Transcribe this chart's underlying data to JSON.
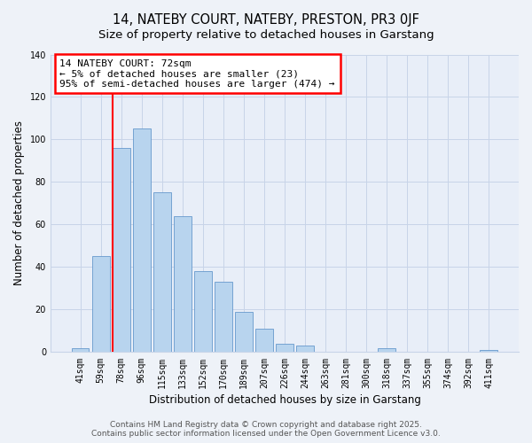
{
  "title": "14, NATEBY COURT, NATEBY, PRESTON, PR3 0JF",
  "subtitle": "Size of property relative to detached houses in Garstang",
  "xlabel": "Distribution of detached houses by size in Garstang",
  "ylabel": "Number of detached properties",
  "bar_labels": [
    "41sqm",
    "59sqm",
    "78sqm",
    "96sqm",
    "115sqm",
    "133sqm",
    "152sqm",
    "170sqm",
    "189sqm",
    "207sqm",
    "226sqm",
    "244sqm",
    "263sqm",
    "281sqm",
    "300sqm",
    "318sqm",
    "337sqm",
    "355sqm",
    "374sqm",
    "392sqm",
    "411sqm"
  ],
  "bar_values": [
    2,
    45,
    96,
    105,
    75,
    64,
    38,
    33,
    19,
    11,
    4,
    3,
    0,
    0,
    0,
    2,
    0,
    0,
    0,
    0,
    1
  ],
  "bar_color": "#b8d4ee",
  "bar_edge_color": "#6699cc",
  "redline_index": 2,
  "annotation_title": "14 NATEBY COURT: 72sqm",
  "annotation_line1": "← 5% of detached houses are smaller (23)",
  "annotation_line2": "95% of semi-detached houses are larger (474) →",
  "ylim": [
    0,
    140
  ],
  "yticks": [
    0,
    20,
    40,
    60,
    80,
    100,
    120,
    140
  ],
  "footer1": "Contains HM Land Registry data © Crown copyright and database right 2025.",
  "footer2": "Contains public sector information licensed under the Open Government Licence v3.0.",
  "background_color": "#eef2f8",
  "plot_bg_color": "#e8eef8",
  "grid_color": "#c8d4e8",
  "title_fontsize": 10.5,
  "subtitle_fontsize": 9.5,
  "axis_label_fontsize": 8.5,
  "tick_fontsize": 7,
  "footer_fontsize": 6.5,
  "ann_fontsize": 8
}
